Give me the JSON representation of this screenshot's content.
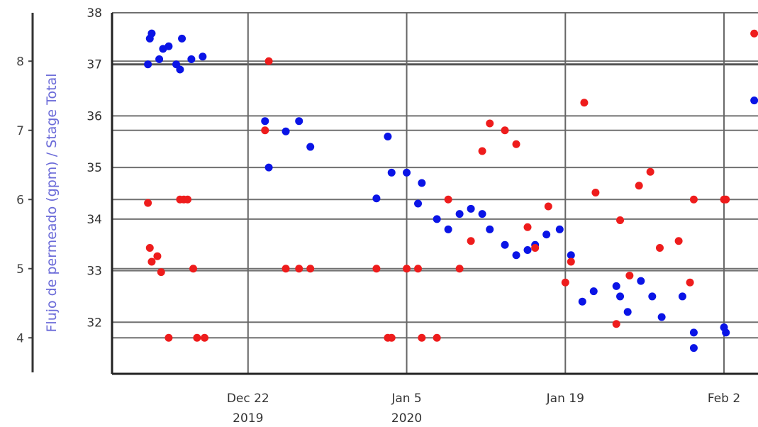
{
  "chart_data": {
    "type": "scatter",
    "title": "",
    "left_axis": {
      "label": "Flujo de permeado (gpm) / Stage Total",
      "ticks": [
        "8",
        "7",
        "6",
        "5",
        "4"
      ],
      "range": [
        3.5,
        8.7
      ]
    },
    "right_axis": {
      "ticks": [
        "38",
        "37",
        "36",
        "35",
        "34",
        "33",
        "32"
      ],
      "range": [
        31.0,
        38.0
      ]
    },
    "x_axis": {
      "range": [
        "2019-12-10",
        "2020-02-05"
      ],
      "ticks": [
        {
          "date": "2019-12-22",
          "line1": "Dec 22",
          "line2": "2019"
        },
        {
          "date": "2020-01-05",
          "line1": "Jan 5",
          "line2": "2020"
        },
        {
          "date": "2020-01-19",
          "line1": "Jan 19",
          "line2": ""
        },
        {
          "date": "2020-02-02",
          "line1": "Feb 2",
          "line2": ""
        }
      ]
    },
    "grid": true,
    "series": [
      {
        "color": "#0a14e6",
        "axis": "right",
        "points": [
          [
            "2019-12-13T08:00",
            37.5
          ],
          [
            "2019-12-13T12:00",
            37.6
          ],
          [
            "2019-12-13T04:00",
            37.0
          ],
          [
            "2019-12-14T04:00",
            37.1
          ],
          [
            "2019-12-14T12:00",
            37.3
          ],
          [
            "2019-12-15T00:00",
            37.35
          ],
          [
            "2019-12-15T16:00",
            37.0
          ],
          [
            "2019-12-16T00:00",
            36.9
          ],
          [
            "2019-12-16T04:00",
            37.5
          ],
          [
            "2019-12-17T00:00",
            37.1
          ],
          [
            "2019-12-18T00:00",
            37.15
          ],
          [
            "2019-12-23T12:00",
            35.9
          ],
          [
            "2019-12-23T20:00",
            35.0
          ],
          [
            "2019-12-25T08:00",
            35.7
          ],
          [
            "2019-12-26T12:00",
            35.9
          ],
          [
            "2019-12-27T12:00",
            35.4
          ],
          [
            "2020-01-02T08:00",
            34.4
          ],
          [
            "2020-01-03T08:00",
            35.6
          ],
          [
            "2020-01-03T16:00",
            34.9
          ],
          [
            "2020-01-05T00:00",
            34.9
          ],
          [
            "2020-01-06T00:00",
            34.3
          ],
          [
            "2020-01-06T08:00",
            34.7
          ],
          [
            "2020-01-07T16:00",
            34.0
          ],
          [
            "2020-01-08T16:00",
            33.8
          ],
          [
            "2020-01-09T16:00",
            34.1
          ],
          [
            "2020-01-10T16:00",
            34.2
          ],
          [
            "2020-01-11T16:00",
            34.1
          ],
          [
            "2020-01-12T08:00",
            33.8
          ],
          [
            "2020-01-13T16:00",
            33.5
          ],
          [
            "2020-01-14T16:00",
            33.3
          ],
          [
            "2020-01-15T16:00",
            33.4
          ],
          [
            "2020-01-16T08:00",
            33.5
          ],
          [
            "2020-01-17T08:00",
            33.7
          ],
          [
            "2020-01-18T12:00",
            33.8
          ],
          [
            "2020-01-19T12:00",
            33.3
          ],
          [
            "2020-01-20T12:00",
            32.4
          ],
          [
            "2020-01-21T12:00",
            32.6
          ],
          [
            "2020-01-23T12:00",
            32.7
          ],
          [
            "2020-01-23T20:00",
            32.5
          ],
          [
            "2020-01-24T12:00",
            32.2
          ],
          [
            "2020-01-25T16:00",
            32.8
          ],
          [
            "2020-01-26T16:00",
            32.5
          ],
          [
            "2020-01-27T12:00",
            32.1
          ],
          [
            "2020-01-29T08:00",
            32.5
          ],
          [
            "2020-01-30T08:00",
            31.8
          ],
          [
            "2020-01-30T08:00",
            31.5
          ],
          [
            "2020-02-02T00:00",
            31.9
          ],
          [
            "2020-02-02T04:00",
            31.8
          ],
          [
            "2020-02-04T16:00",
            36.3
          ]
        ]
      },
      {
        "color": "#ee1c1c",
        "axis": "left",
        "points": [
          [
            "2019-12-13T04:00",
            5.95
          ],
          [
            "2019-12-13T08:00",
            5.3
          ],
          [
            "2019-12-13T12:00",
            5.1
          ],
          [
            "2019-12-14T00:00",
            5.18
          ],
          [
            "2019-12-14T08:00",
            4.95
          ],
          [
            "2019-12-15T00:00",
            4.0
          ],
          [
            "2019-12-16T00:00",
            6.0
          ],
          [
            "2019-12-16T08:00",
            6.0
          ],
          [
            "2019-12-16T16:00",
            6.0
          ],
          [
            "2019-12-17T04:00",
            5.0
          ],
          [
            "2019-12-17T12:00",
            4.0
          ],
          [
            "2019-12-18T04:00",
            4.0
          ],
          [
            "2019-12-23T12:00",
            7.0
          ],
          [
            "2019-12-23T20:00",
            8.0
          ],
          [
            "2019-12-25T08:00",
            5.0
          ],
          [
            "2019-12-26T12:00",
            5.0
          ],
          [
            "2019-12-27T12:00",
            5.0
          ],
          [
            "2020-01-02T08:00",
            5.0
          ],
          [
            "2020-01-03T08:00",
            4.0
          ],
          [
            "2020-01-03T16:00",
            4.0
          ],
          [
            "2020-01-05T00:00",
            5.0
          ],
          [
            "2020-01-06T00:00",
            5.0
          ],
          [
            "2020-01-06T08:00",
            4.0
          ],
          [
            "2020-01-07T16:00",
            4.0
          ],
          [
            "2020-01-08T16:00",
            6.0
          ],
          [
            "2020-01-09T16:00",
            5.0
          ],
          [
            "2020-01-10T16:00",
            5.4
          ],
          [
            "2020-01-11T16:00",
            6.7
          ],
          [
            "2020-01-12T08:00",
            7.1
          ],
          [
            "2020-01-13T16:00",
            7.0
          ],
          [
            "2020-01-14T16:00",
            6.8
          ],
          [
            "2020-01-15T16:00",
            5.6
          ],
          [
            "2020-01-16T08:00",
            5.3
          ],
          [
            "2020-01-17T12:00",
            5.9
          ],
          [
            "2020-01-19T00:00",
            4.8
          ],
          [
            "2020-01-19T12:00",
            5.1
          ],
          [
            "2020-01-20T16:00",
            7.4
          ],
          [
            "2020-01-21T16:00",
            6.1
          ],
          [
            "2020-01-23T12:00",
            4.2
          ],
          [
            "2020-01-23T20:00",
            5.7
          ],
          [
            "2020-01-24T16:00",
            4.9
          ],
          [
            "2020-01-25T12:00",
            6.2
          ],
          [
            "2020-01-26T12:00",
            6.4
          ],
          [
            "2020-01-27T08:00",
            5.3
          ],
          [
            "2020-01-29T00:00",
            5.4
          ],
          [
            "2020-01-30T00:00",
            4.8
          ],
          [
            "2020-01-30T08:00",
            6.0
          ],
          [
            "2020-02-02T00:00",
            6.0
          ],
          [
            "2020-02-02T04:00",
            6.0
          ],
          [
            "2020-02-04T16:00",
            8.4
          ]
        ]
      }
    ]
  }
}
